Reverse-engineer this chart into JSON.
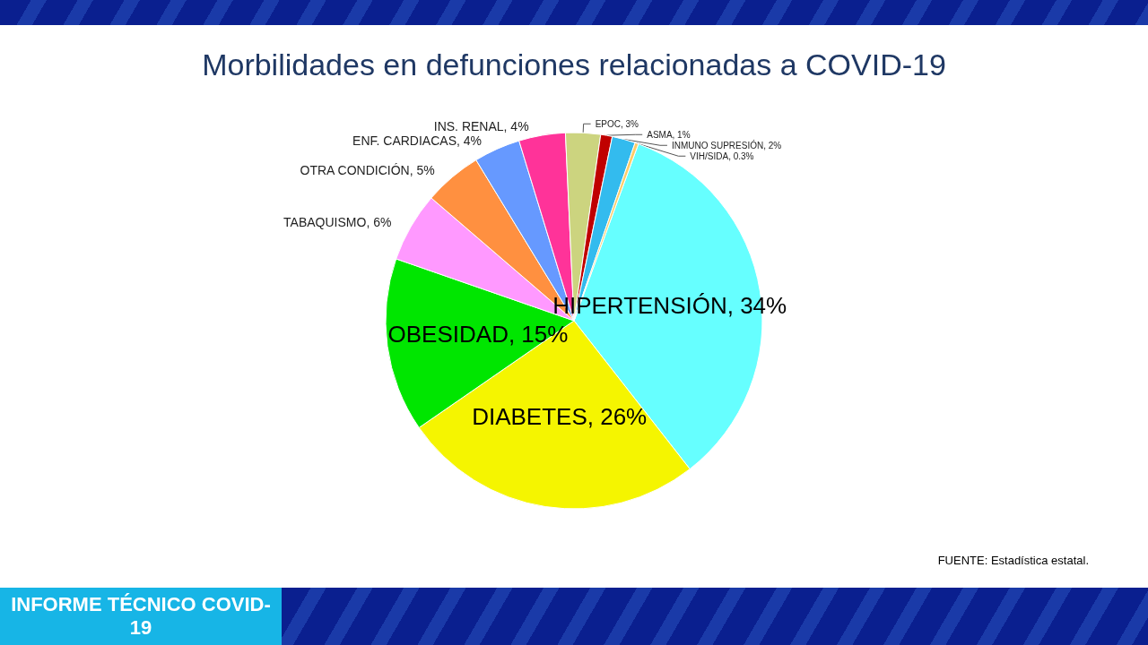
{
  "chart_data": {
    "type": "pie",
    "title": "Morbilidades en defunciones relacionadas a COVID-19",
    "categories": [
      "HIPERTENSIÓN",
      "DIABETES",
      "OBESIDAD",
      "TABAQUISMO",
      "OTRA CONDICIÓN",
      "ENF. CARDIACAS",
      "INS. RENAL",
      "EPOC",
      "ASMA",
      "INMUNO SUPRESIÓN",
      "VIH/SIDA"
    ],
    "values": [
      34,
      26,
      15,
      6,
      5,
      4,
      4,
      3,
      1,
      2,
      0.3
    ],
    "colors": [
      "#66ffff",
      "#f5f500",
      "#00e600",
      "#ff99ff",
      "#ff9040",
      "#6699ff",
      "#ff3399",
      "#ccd47f",
      "#c00000",
      "#33bbee",
      "#ffcc66"
    ],
    "value_labels": [
      "34%",
      "26%",
      "15%",
      "6%",
      "5%",
      "4%",
      "4%",
      "3%",
      "1%",
      "2%",
      "0.3%"
    ],
    "legend": false,
    "annotations": [
      "FUENTE:  Estadística estatal.",
      "INFORME TÉCNICO COVID-19"
    ]
  }
}
